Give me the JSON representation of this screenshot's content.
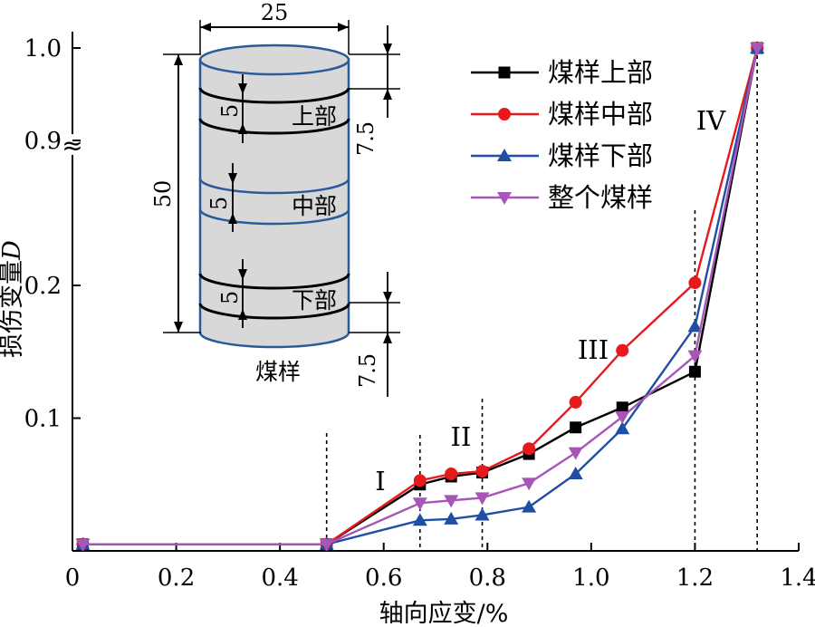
{
  "chart_data": {
    "type": "line",
    "xlabel": "轴向应变/%",
    "ylabel": "损伤变量",
    "ylabel_italic": "D",
    "xlim": [
      0,
      1.4
    ],
    "x_ticks": [
      "0",
      "0.2",
      "0.4",
      "0.6",
      "0.8",
      "1.0",
      "1.2",
      "1.4"
    ],
    "y_ticks": [
      "0.1",
      "0.2",
      "0.9",
      "1.0"
    ],
    "y_axis_break": "≈",
    "grid": false,
    "legend_position": "top-right",
    "series": [
      {
        "name": "煤样上部",
        "color": "#000000",
        "marker": "square",
        "x": [
          0.02,
          0.49,
          0.67,
          0.73,
          0.79,
          0.88,
          0.97,
          1.06,
          1.2,
          1.32
        ],
        "y": [
          0.005,
          0.005,
          0.05,
          0.056,
          0.059,
          0.073,
          0.093,
          0.108,
          0.135,
          1.0
        ]
      },
      {
        "name": "煤样中部",
        "color": "#e8191d",
        "marker": "circle",
        "x": [
          0.02,
          0.49,
          0.67,
          0.73,
          0.79,
          0.88,
          0.97,
          1.06,
          1.2,
          1.32
        ],
        "y": [
          0.005,
          0.005,
          0.053,
          0.058,
          0.06,
          0.077,
          0.112,
          0.151,
          0.202,
          1.0
        ]
      },
      {
        "name": "煤样下部",
        "color": "#1f4fa5",
        "marker": "triangle-up",
        "x": [
          0.02,
          0.49,
          0.67,
          0.73,
          0.79,
          0.88,
          0.97,
          1.06,
          1.2,
          1.32
        ],
        "y": [
          0.005,
          0.005,
          0.023,
          0.024,
          0.027,
          0.033,
          0.058,
          0.092,
          0.169,
          1.0
        ]
      },
      {
        "name": "整个煤样",
        "color": "#a855b8",
        "marker": "triangle-down",
        "x": [
          0.02,
          0.49,
          0.67,
          0.73,
          0.79,
          0.88,
          0.97,
          1.06,
          1.2,
          1.32
        ],
        "y": [
          0.005,
          0.005,
          0.036,
          0.038,
          0.04,
          0.051,
          0.074,
          0.101,
          0.147,
          1.0
        ]
      }
    ],
    "stage_dividers_x": [
      0.49,
      0.67,
      0.79,
      1.2,
      1.32
    ],
    "stage_labels": [
      "I",
      "II",
      "III",
      "IV"
    ]
  },
  "inset": {
    "diameter": "25",
    "height": "50",
    "section_height": "5",
    "offset": "7.5",
    "offset_bottom": "7.5",
    "label_upper": "上部",
    "label_middle": "中部",
    "label_lower": "下部",
    "caption": "煤样"
  }
}
